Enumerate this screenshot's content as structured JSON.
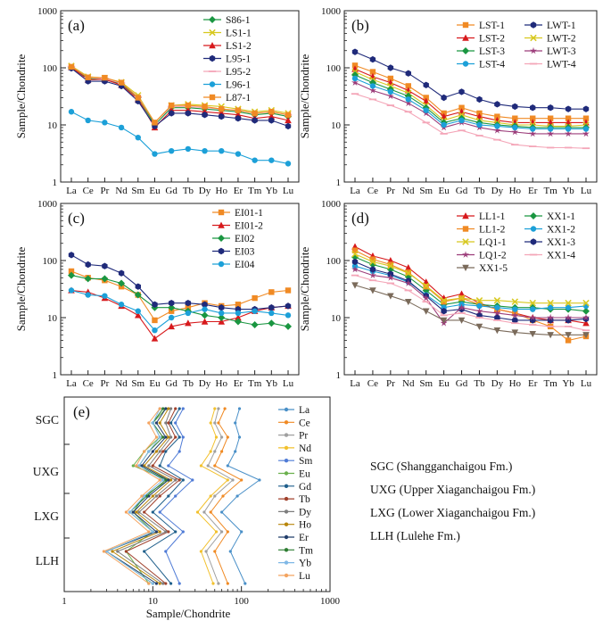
{
  "chart_data": [
    {
      "type": "line",
      "panel_label": "(a)",
      "x": [
        "La",
        "Ce",
        "Pr",
        "Nd",
        "Sm",
        "Eu",
        "Gd",
        "Tb",
        "Dy",
        "Ho",
        "Er",
        "Tm",
        "Yb",
        "Lu"
      ],
      "ylabel": "Sample/Chondrite",
      "yscale": "log",
      "ylim": [
        1,
        1000
      ],
      "yticks": [
        "1",
        "10",
        "100",
        "1000"
      ],
      "legend_position": "top-right",
      "series": [
        {
          "name": "S86-1",
          "color": "#1a9641",
          "marker": "diamond",
          "values": [
            100,
            65,
            62,
            52,
            30,
            10,
            20,
            20,
            19,
            18,
            17,
            15,
            16,
            14
          ]
        },
        {
          "name": "LS1-1",
          "color": "#d7c81e",
          "marker": "x",
          "values": [
            108,
            70,
            66,
            56,
            33,
            11,
            22,
            23,
            22,
            21,
            19,
            17,
            18,
            16
          ]
        },
        {
          "name": "LS1-2",
          "color": "#d7191c",
          "marker": "triangle",
          "values": [
            102,
            62,
            63,
            50,
            28,
            9,
            18,
            18,
            17,
            16,
            15,
            13,
            14,
            12
          ]
        },
        {
          "name": "L95-1",
          "color": "#1f2a7a",
          "marker": "hexagon",
          "values": [
            98,
            58,
            58,
            48,
            26,
            9.5,
            16,
            16,
            15,
            14,
            13,
            12,
            12,
            9.5
          ]
        },
        {
          "name": "L95-2",
          "color": "#f4a6b8",
          "marker": "dash",
          "values": [
            105,
            68,
            65,
            54,
            31,
            11,
            21,
            21,
            20,
            19,
            18,
            16,
            17,
            15
          ]
        },
        {
          "name": "L96-1",
          "color": "#1ca0d8",
          "marker": "circle",
          "values": [
            17,
            12,
            11,
            9,
            6,
            3.1,
            3.5,
            3.8,
            3.5,
            3.5,
            3.1,
            2.4,
            2.4,
            2.1
          ]
        },
        {
          "name": "L87-1",
          "color": "#f08a24",
          "marker": "square",
          "values": [
            104,
            68,
            67,
            55,
            30,
            11,
            22,
            22,
            21,
            19,
            18,
            16,
            17,
            15
          ]
        }
      ]
    },
    {
      "type": "line",
      "panel_label": "(b)",
      "x": [
        "La",
        "Ce",
        "Pr",
        "Nd",
        "Sm",
        "Eu",
        "Gd",
        "Tb",
        "Dy",
        "Ho",
        "Er",
        "Tm",
        "Yb",
        "Lu"
      ],
      "ylabel": "Sample/Chondrite",
      "yscale": "log",
      "ylim": [
        1,
        1000
      ],
      "yticks": [
        "1",
        "10",
        "100",
        "1000"
      ],
      "legend_position": "top-right",
      "series": [
        {
          "name": "LST-1",
          "color": "#f08a24",
          "marker": "square",
          "values": [
            110,
            85,
            65,
            48,
            30,
            16,
            20,
            16,
            14,
            13,
            13,
            13,
            13,
            13
          ]
        },
        {
          "name": "LWT-1",
          "color": "#1f2a7a",
          "marker": "hexagon",
          "values": [
            190,
            140,
            100,
            80,
            50,
            30,
            38,
            28,
            23,
            21,
            20,
            20,
            19,
            19
          ]
        },
        {
          "name": "LST-2",
          "color": "#d7191c",
          "marker": "triangle",
          "values": [
            95,
            70,
            55,
            40,
            26,
            14,
            17,
            14,
            12,
            11,
            11,
            11,
            11,
            11
          ]
        },
        {
          "name": "LWT-2",
          "color": "#d7c81e",
          "marker": "x",
          "values": [
            85,
            62,
            48,
            36,
            22,
            12,
            15,
            12,
            11,
            10,
            10,
            9.5,
            9.5,
            10
          ]
        },
        {
          "name": "LST-3",
          "color": "#1a9641",
          "marker": "diamond",
          "values": [
            75,
            55,
            42,
            32,
            20,
            11,
            13,
            11,
            10,
            9.5,
            9,
            9,
            9,
            9
          ]
        },
        {
          "name": "LWT-3",
          "color": "#9c3d7a",
          "marker": "star",
          "values": [
            55,
            40,
            32,
            24,
            16,
            9,
            11,
            9,
            8,
            7.5,
            7,
            7,
            7,
            7
          ]
        },
        {
          "name": "LST-4",
          "color": "#1ca0d8",
          "marker": "circle",
          "values": [
            65,
            48,
            38,
            28,
            18,
            10,
            12,
            10,
            9.5,
            9,
            8.5,
            8.5,
            8.5,
            8.5
          ]
        },
        {
          "name": "LWT-4",
          "color": "#f4a6b8",
          "marker": "dash",
          "values": [
            35,
            28,
            22,
            17,
            11,
            7,
            8,
            6.5,
            5.5,
            4.5,
            4.2,
            4,
            4,
            3.9
          ]
        }
      ]
    },
    {
      "type": "line",
      "panel_label": "(c)",
      "x": [
        "La",
        "Ce",
        "Pr",
        "Nd",
        "Sm",
        "Eu",
        "Gd",
        "Tb",
        "Dy",
        "Ho",
        "Er",
        "Tm",
        "Yb",
        "Lu"
      ],
      "ylabel": "Sample/Chondrite",
      "yscale": "log",
      "ylim": [
        1,
        1000
      ],
      "yticks": [
        "1",
        "10",
        "100",
        "1000"
      ],
      "legend_position": "top-right",
      "series": [
        {
          "name": "EI01-1",
          "color": "#f08a24",
          "marker": "square",
          "values": [
            65,
            50,
            45,
            35,
            25,
            9,
            13,
            15,
            18,
            16,
            17,
            22,
            28,
            30
          ]
        },
        {
          "name": "EI01-2",
          "color": "#d7191c",
          "marker": "triangle",
          "values": [
            30,
            28,
            22,
            16,
            11,
            4.3,
            7,
            8,
            8.5,
            8.5,
            10,
            13,
            15,
            16
          ]
        },
        {
          "name": "EI02",
          "color": "#1a9641",
          "marker": "diamond",
          "values": [
            55,
            48,
            48,
            40,
            25,
            15,
            15,
            13,
            11,
            10,
            8.5,
            7.5,
            8,
            7
          ]
        },
        {
          "name": "EI03",
          "color": "#1f2a7a",
          "marker": "hexagon",
          "values": [
            125,
            85,
            80,
            60,
            35,
            17,
            18,
            18,
            17,
            15,
            14,
            14,
            15,
            16
          ]
        },
        {
          "name": "EI04",
          "color": "#1ca0d8",
          "marker": "circle",
          "values": [
            30,
            25,
            24,
            17,
            13,
            6,
            10,
            12,
            14,
            12,
            12,
            13,
            12,
            11
          ]
        }
      ]
    },
    {
      "type": "line",
      "panel_label": "(d)",
      "x": [
        "La",
        "Ce",
        "Pr",
        "Nd",
        "Sm",
        "Eu",
        "Gd",
        "Tb",
        "Dy",
        "Ho",
        "Er",
        "Tm",
        "Yb",
        "Lu"
      ],
      "ylabel": "Sample/Chondrite",
      "yscale": "log",
      "ylim": [
        1,
        1000
      ],
      "yticks": [
        "1",
        "10",
        "100",
        "1000"
      ],
      "legend_position": "top-right",
      "series": [
        {
          "name": "LL1-1",
          "color": "#d7191c",
          "marker": "triangle",
          "values": [
            175,
            120,
            100,
            75,
            42,
            22,
            26,
            18,
            14,
            12,
            10,
            9,
            9,
            8
          ]
        },
        {
          "name": "XX1-1",
          "color": "#1a9641",
          "marker": "diamond",
          "values": [
            115,
            85,
            70,
            52,
            30,
            17,
            19,
            17,
            16,
            15,
            15,
            14,
            14,
            13
          ]
        },
        {
          "name": "LL1-2",
          "color": "#f08a24",
          "marker": "square",
          "values": [
            150,
            105,
            85,
            62,
            35,
            19,
            22,
            17,
            14,
            12,
            9,
            7,
            4,
            4.7
          ]
        },
        {
          "name": "XX1-2",
          "color": "#1ca0d8",
          "marker": "circle",
          "values": [
            80,
            65,
            55,
            42,
            25,
            15,
            17,
            16,
            15,
            14,
            14,
            15,
            15,
            16
          ]
        },
        {
          "name": "LQ1-1",
          "color": "#d7c81e",
          "marker": "x",
          "values": [
            130,
            95,
            80,
            60,
            36,
            20,
            22,
            20,
            20,
            19,
            18,
            18,
            18,
            18
          ]
        },
        {
          "name": "XX1-3",
          "color": "#1f2a7a",
          "marker": "hexagon",
          "values": [
            95,
            70,
            58,
            44,
            24,
            13,
            14,
            11,
            10,
            9,
            9,
            9,
            9,
            9.5
          ]
        },
        {
          "name": "LQ1-2",
          "color": "#9c3d7a",
          "marker": "star",
          "values": [
            70,
            55,
            50,
            40,
            22,
            8,
            15,
            13,
            12,
            11,
            10,
            10,
            10,
            10
          ]
        },
        {
          "name": "XX1-4",
          "color": "#f4a6b8",
          "marker": "dash",
          "values": [
            55,
            45,
            40,
            30,
            19,
            11,
            12,
            10,
            9,
            8,
            7.5,
            7,
            7,
            6
          ]
        },
        {
          "name": "XX1-5",
          "color": "#7a6a5a",
          "marker": "tri-down",
          "values": [
            37,
            30,
            24,
            19,
            13,
            9,
            9,
            7,
            6,
            5.5,
            5.2,
            5,
            5,
            5
          ]
        }
      ]
    },
    {
      "type": "line",
      "panel_label": "(e)",
      "orientation": "vertical-profile",
      "xlabel": "Sample/Chondrite",
      "xscale": "log",
      "xlim": [
        1,
        1000
      ],
      "xticks": [
        "1",
        "10",
        "100",
        "1000"
      ],
      "categories_y": [
        "SGC",
        "UXG",
        "LXG",
        "LLH"
      ],
      "legend_position": "right",
      "series": [
        {
          "name": "La",
          "color": "#4a90c8",
          "values": [
            95,
            85,
            95,
            85,
            70,
            160,
            90,
            60,
            100,
            75,
            110
          ]
        },
        {
          "name": "Ce",
          "color": "#f08a24",
          "values": [
            65,
            55,
            70,
            60,
            50,
            100,
            62,
            45,
            70,
            50,
            70
          ]
        },
        {
          "name": "Pr",
          "color": "#a0a0a0",
          "values": [
            55,
            50,
            60,
            50,
            42,
            80,
            50,
            38,
            60,
            40,
            55
          ]
        },
        {
          "name": "Nd",
          "color": "#f2c12e",
          "values": [
            50,
            45,
            52,
            45,
            35,
            70,
            45,
            32,
            52,
            35,
            48
          ]
        },
        {
          "name": "Sm",
          "color": "#4f7bd6",
          "values": [
            22,
            18,
            22,
            20,
            15,
            28,
            18,
            12,
            22,
            14,
            20
          ]
        },
        {
          "name": "Eu",
          "color": "#6ab04c",
          "values": [
            14,
            10,
            12,
            8,
            6,
            15,
            8,
            6,
            10,
            5,
            9
          ]
        },
        {
          "name": "Gd",
          "color": "#1f5f8b",
          "values": [
            20,
            16,
            20,
            14,
            12,
            22,
            15,
            10,
            18,
            8,
            16
          ]
        },
        {
          "name": "Tb",
          "color": "#a0412c",
          "values": [
            18,
            15,
            18,
            13,
            10,
            20,
            12,
            8,
            15,
            5,
            14
          ]
        },
        {
          "name": "Dy",
          "color": "#7d7d7d",
          "values": [
            16,
            14,
            16,
            12,
            9,
            18,
            11,
            7,
            14,
            4,
            13
          ]
        },
        {
          "name": "Ho",
          "color": "#b8860b",
          "values": [
            15,
            12,
            15,
            11,
            8,
            16,
            10,
            6.5,
            12,
            3.5,
            12
          ]
        },
        {
          "name": "Er",
          "color": "#223e6b",
          "values": [
            14,
            11,
            14,
            10,
            7.5,
            15,
            9,
            6,
            11,
            3,
            11
          ]
        },
        {
          "name": "Tm",
          "color": "#2e7d32",
          "values": [
            13,
            10,
            13,
            9,
            7,
            14,
            8.5,
            5.5,
            10,
            3,
            10
          ]
        },
        {
          "name": "Yb",
          "color": "#7fb8e6",
          "values": [
            12,
            10,
            12,
            9,
            7,
            13,
            8,
            5.5,
            10,
            3,
            10
          ]
        },
        {
          "name": "Lu",
          "color": "#f4a460",
          "values": [
            12,
            9,
            11,
            8,
            6.5,
            12,
            7.5,
            5,
            9,
            2.8,
            9
          ]
        }
      ]
    }
  ],
  "notes": [
    "SGC (Shangganchaigou Fm.)",
    "UXG (Upper Xiaganchaigou Fm.)",
    "LXG (Lower Xiaganchaigou Fm.)",
    "LLH (Lulehe Fm.)"
  ]
}
